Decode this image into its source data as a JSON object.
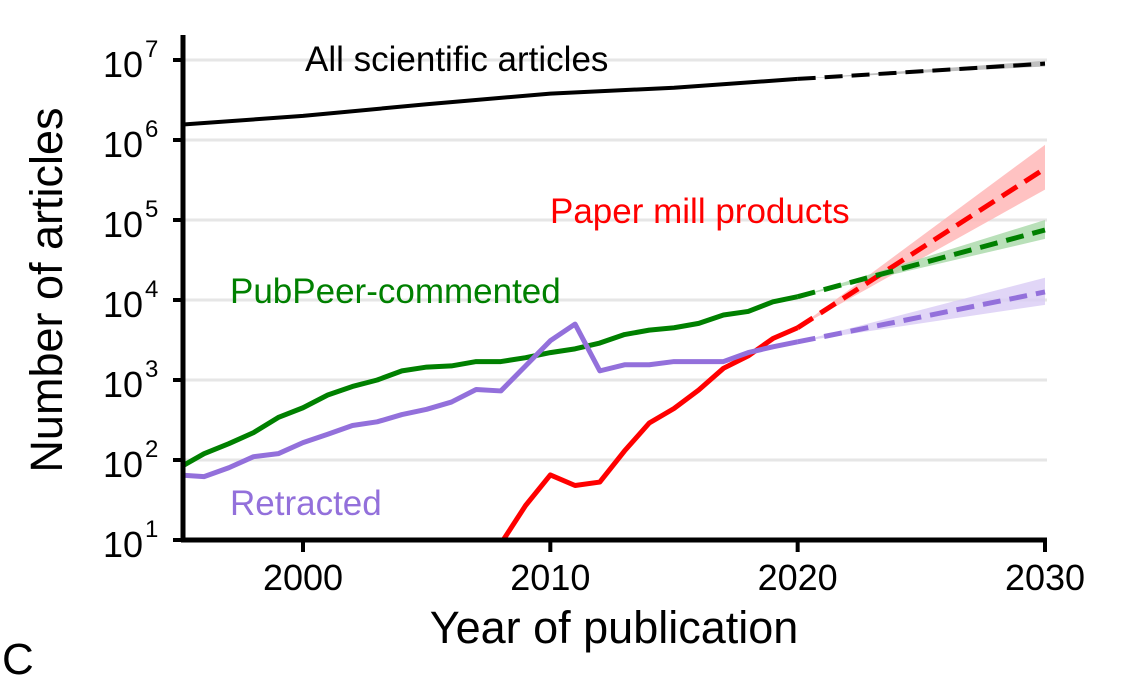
{
  "panel_label": "C",
  "chart_data": {
    "type": "line",
    "title": "",
    "xlabel": "Year of publication",
    "ylabel": "Number of articles",
    "xlim": [
      1995,
      2030
    ],
    "ylim": [
      10,
      16000000
    ],
    "yscale": "log",
    "grid": "horizontal",
    "x_ticks": [
      2000,
      2010,
      2020,
      2030
    ],
    "y_ticks": [
      {
        "base": "10",
        "exp": "1",
        "value": 10
      },
      {
        "base": "10",
        "exp": "2",
        "value": 100
      },
      {
        "base": "10",
        "exp": "3",
        "value": 1000
      },
      {
        "base": "10",
        "exp": "4",
        "value": 10000
      },
      {
        "base": "10",
        "exp": "5",
        "value": 100000
      },
      {
        "base": "10",
        "exp": "6",
        "value": 1000000
      },
      {
        "base": "10",
        "exp": "7",
        "value": 10000000
      }
    ],
    "series": [
      {
        "name": "All scientific articles",
        "color": "#000000",
        "band_color": "#b0b0b0",
        "x": [
          1995,
          2000,
          2005,
          2010,
          2015,
          2020
        ],
        "y": [
          1550000,
          2000000,
          2800000,
          3800000,
          4500000,
          5800000
        ],
        "projection": {
          "x": [
            2020,
            2030
          ],
          "y": [
            5800000,
            9000000
          ],
          "band_2030": [
            8300000,
            9800000
          ]
        }
      },
      {
        "name": "Paper mill products",
        "color": "#ff0000",
        "band_color": "#ffb3b3",
        "x": [
          2008,
          2009,
          2010,
          2011,
          2012,
          2013,
          2014,
          2015,
          2016,
          2017,
          2018,
          2019,
          2020
        ],
        "y": [
          9,
          27,
          65,
          48,
          53,
          130,
          290,
          440,
          750,
          1400,
          2000,
          3300,
          4500
        ],
        "projection": {
          "x": [
            2020,
            2030
          ],
          "y": [
            4500,
            440000
          ],
          "band_2030": [
            240000,
            870000
          ]
        }
      },
      {
        "name": "PubPeer-commented",
        "color": "#008000",
        "band_color": "#a8d8a8",
        "x": [
          1995,
          1996,
          1997,
          1998,
          1999,
          2000,
          2001,
          2002,
          2003,
          2004,
          2005,
          2006,
          2007,
          2008,
          2009,
          2010,
          2011,
          2012,
          2013,
          2014,
          2015,
          2016,
          2017,
          2018,
          2019,
          2020
        ],
        "y": [
          80,
          120,
          160,
          220,
          340,
          450,
          650,
          830,
          1000,
          1300,
          1450,
          1500,
          1700,
          1700,
          1900,
          2200,
          2450,
          2900,
          3700,
          4200,
          4500,
          5100,
          6500,
          7200,
          9500,
          11000
        ],
        "projection": {
          "x": [
            2020,
            2030
          ],
          "y": [
            11000,
            75000
          ],
          "band_2030": [
            58000,
            100000
          ]
        }
      },
      {
        "name": "Retracted",
        "color": "#9370db",
        "band_color": "#d9ccf5",
        "x": [
          1995,
          1996,
          1997,
          1998,
          1999,
          2000,
          2001,
          2002,
          2003,
          2004,
          2005,
          2006,
          2007,
          2008,
          2009,
          2010,
          2011,
          2012,
          2013,
          2014,
          2015,
          2016,
          2017,
          2018,
          2019,
          2020
        ],
        "y": [
          65,
          62,
          80,
          110,
          120,
          165,
          210,
          270,
          300,
          370,
          430,
          530,
          760,
          730,
          1500,
          3100,
          5000,
          1300,
          1550,
          1550,
          1700,
          1700,
          1700,
          2200,
          2600,
          3000
        ],
        "projection": {
          "x": [
            2020,
            2030
          ],
          "y": [
            3000,
            12600
          ],
          "band_2030": [
            8700,
            19000
          ]
        }
      }
    ]
  }
}
